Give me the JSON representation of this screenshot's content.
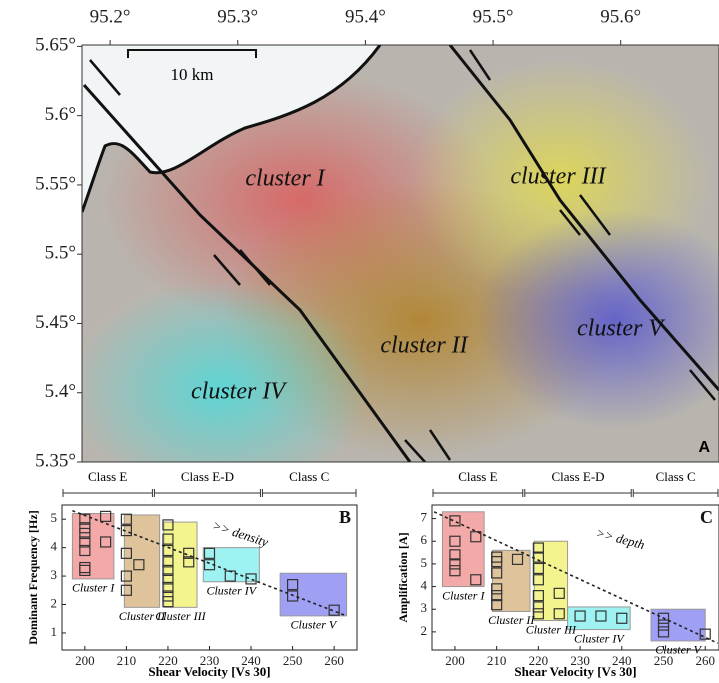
{
  "map": {
    "xlim": [
      95.178,
      95.677
    ],
    "ylim": [
      5.35,
      5.651
    ],
    "xticks": [
      {
        "value": 95.2,
        "label": "95.2°"
      },
      {
        "value": 95.3,
        "label": "95.3°"
      },
      {
        "value": 95.4,
        "label": "95.4°"
      },
      {
        "value": 95.5,
        "label": "95.5°"
      },
      {
        "value": 95.6,
        "label": "95.6°"
      }
    ],
    "yticks": [
      {
        "value": 5.35,
        "label": "5.35°"
      },
      {
        "value": 5.4,
        "label": "5.4°"
      },
      {
        "value": 5.45,
        "label": "5.45°"
      },
      {
        "value": 5.5,
        "label": "5.5°"
      },
      {
        "value": 5.55,
        "label": "5.55°"
      },
      {
        "value": 5.6,
        "label": "5.6°"
      },
      {
        "value": 5.65,
        "label": "5.65°"
      }
    ],
    "clusters": [
      "cluster I",
      "cluster II",
      "cluster III",
      "cluster IV",
      "cluster V"
    ],
    "scale_label": "10 km",
    "panel_label": "A"
  },
  "chart_data": [
    {
      "type": "scatter",
      "panel_label": "B",
      "x_label": "Shear Velocity [Vs 30]",
      "y_label": "Dominant Frequency [Hz]",
      "annotation": ">> density",
      "xlim": [
        194.5,
        265.5
      ],
      "ylim": [
        0.4,
        5.5
      ],
      "xticks": [
        200,
        210,
        220,
        230,
        240,
        250,
        260
      ],
      "yticks": [
        1,
        2,
        3,
        4,
        5
      ],
      "classes": [
        {
          "label": "Class E",
          "range": [
            194.5,
            216.5
          ]
        },
        {
          "label": "Class E-D",
          "range": [
            216.5,
            242.5
          ]
        },
        {
          "label": "Class C",
          "range": [
            242.5,
            265.5
          ]
        }
      ],
      "trend": {
        "x": [
          197,
          263
        ],
        "y": [
          5.3,
          1.6
        ]
      },
      "series": [
        {
          "name": "Cluster I",
          "color": "#f29a9a",
          "box": {
            "x": [
              197,
              207
            ],
            "y": [
              2.9,
              5.2
            ]
          },
          "x": [
            200,
            200,
            200,
            200,
            200,
            200,
            200,
            205,
            205
          ],
          "values": [
            5.0,
            4.7,
            4.5,
            4.2,
            3.9,
            3.3,
            3.2,
            5.1,
            4.2
          ]
        },
        {
          "name": "Cluster II",
          "color": "#d8b88a",
          "box": {
            "x": [
              209.5,
              218
            ],
            "y": [
              1.9,
              5.15
            ]
          },
          "x": [
            210,
            210,
            210,
            210,
            210,
            213
          ],
          "values": [
            5.0,
            4.6,
            3.8,
            3.0,
            2.5,
            3.4
          ]
        },
        {
          "name": "Cluster III",
          "color": "#f2f27a",
          "box": {
            "x": [
              219,
              227
            ],
            "y": [
              1.9,
              4.9
            ]
          },
          "x": [
            220,
            220,
            220,
            220,
            220,
            220,
            220,
            220,
            220,
            225,
            225
          ],
          "values": [
            4.8,
            4.3,
            3.9,
            3.5,
            3.2,
            2.9,
            2.6,
            2.3,
            2.1,
            3.8,
            3.5
          ]
        },
        {
          "name": "Cluster IV",
          "color": "#8ef0f0",
          "box": {
            "x": [
              228.5,
              242
            ],
            "y": [
              2.8,
              4.0
            ]
          },
          "x": [
            230,
            230,
            235,
            240
          ],
          "values": [
            3.8,
            3.4,
            3.0,
            2.9
          ]
        },
        {
          "name": "Cluster V",
          "color": "#8e8ef2",
          "box": {
            "x": [
              247,
              263
            ],
            "y": [
              1.6,
              3.1
            ]
          },
          "x": [
            250,
            250,
            260
          ],
          "values": [
            2.7,
            2.3,
            1.8
          ]
        }
      ]
    },
    {
      "type": "scatter",
      "panel_label": "C",
      "x_label": "Shear Velocity [Vs 30]",
      "y_label": "Amplification [A]",
      "annotation": ">> depth",
      "xlim": [
        194.5,
        263.3
      ],
      "ylim": [
        1.2,
        7.6
      ],
      "xticks": [
        200,
        210,
        220,
        230,
        240,
        250,
        260
      ],
      "yticks": [
        2,
        3,
        4,
        5,
        6,
        7
      ],
      "classes": [
        {
          "label": "Class E",
          "range": [
            194.5,
            216.5
          ]
        },
        {
          "label": "Class E-D",
          "range": [
            216.5,
            242.5
          ]
        },
        {
          "label": "Class C",
          "range": [
            242.5,
            263.3
          ]
        }
      ],
      "trend": {
        "x": [
          195,
          263
        ],
        "y": [
          7.3,
          1.5
        ]
      },
      "series": [
        {
          "name": "Cluster I",
          "color": "#f29a9a",
          "box": {
            "x": [
              197,
              207
            ],
            "y": [
              4.0,
              7.3
            ]
          },
          "x": [
            200,
            200,
            200,
            200,
            200,
            205,
            205
          ],
          "values": [
            6.9,
            6.0,
            5.4,
            5.0,
            4.7,
            6.2,
            4.3
          ]
        },
        {
          "name": "Cluster II",
          "color": "#d8b88a",
          "box": {
            "x": [
              209,
              218
            ],
            "y": [
              2.9,
              5.6
            ]
          },
          "x": [
            210,
            210,
            210,
            210,
            210,
            210,
            215
          ],
          "values": [
            5.3,
            5.1,
            4.6,
            3.9,
            3.6,
            3.2,
            5.2
          ]
        },
        {
          "name": "Cluster III",
          "color": "#f2f27a",
          "box": {
            "x": [
              219,
              227
            ],
            "y": [
              2.5,
              6.0
            ]
          },
          "x": [
            220,
            220,
            220,
            220,
            220,
            220,
            220,
            225,
            225
          ],
          "values": [
            5.7,
            5.3,
            4.8,
            4.3,
            3.6,
            3.1,
            2.8,
            3.7,
            2.8
          ]
        },
        {
          "name": "Cluster IV",
          "color": "#8ef0f0",
          "box": {
            "x": [
              227,
              242
            ],
            "y": [
              2.1,
              3.1
            ]
          },
          "x": [
            230,
            235,
            240
          ],
          "values": [
            2.7,
            2.7,
            2.6
          ]
        },
        {
          "name": "Cluster V",
          "color": "#8e8ef2",
          "box": {
            "x": [
              247,
              260
            ],
            "y": [
              1.6,
              3.0
            ]
          },
          "x": [
            250,
            250,
            250,
            260
          ],
          "values": [
            2.6,
            2.3,
            2.0,
            1.9
          ]
        }
      ]
    }
  ]
}
